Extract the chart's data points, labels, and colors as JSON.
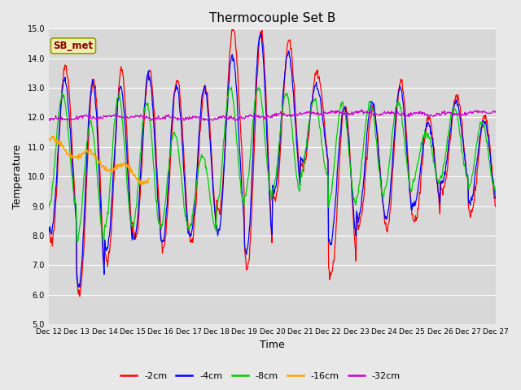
{
  "title": "Thermocouple Set B",
  "xlabel": "Time",
  "ylabel": "Temperature",
  "ylim": [
    5.0,
    15.0
  ],
  "yticks": [
    5.0,
    6.0,
    7.0,
    8.0,
    9.0,
    10.0,
    11.0,
    12.0,
    13.0,
    14.0,
    15.0
  ],
  "bg_color": "#e8e8e8",
  "plot_bg_color": "#d8d8d8",
  "grid_color": "#ffffff",
  "legend_label": "SB_met",
  "series_labels": [
    "-2cm",
    "-4cm",
    "-8cm",
    "-16cm",
    "-32cm"
  ],
  "series_colors": [
    "#ff0000",
    "#0000ff",
    "#00cc00",
    "#ffa500",
    "#cc00cc"
  ],
  "x_tick_labels": [
    "Dec 12",
    "Dec 13",
    "Dec 14",
    "Dec 15",
    "Dec 16",
    "Dec 17",
    "Dec 18",
    "Dec 19",
    "Dec 20",
    "Dec 21",
    "Dec 22",
    "Dec 23",
    "Dec 24",
    "Dec 25",
    "Dec 26",
    "Dec 27"
  ],
  "title_fontsize": 11,
  "axis_fontsize": 9,
  "tick_fontsize": 7,
  "n_days": 16,
  "n_pts_per_day": 48
}
